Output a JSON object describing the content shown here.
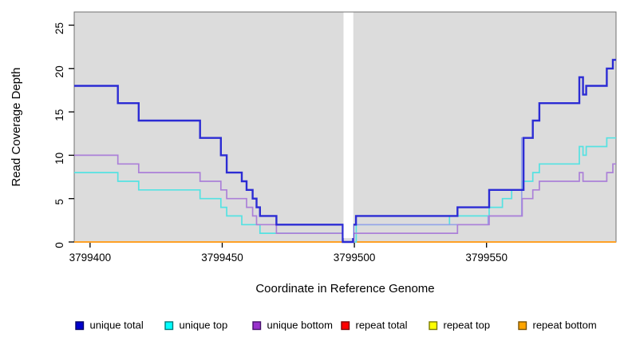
{
  "figure": {
    "background": "#ffffff",
    "panel_background": "#dcdcdc",
    "panel_border_color": "#707070",
    "axis_color": "#000000"
  },
  "chart_data": {
    "type": "line",
    "step": true,
    "title": "",
    "xlabel": "Coordinate in Reference Genome",
    "ylabel": "Read Coverage Depth",
    "xlim": [
      3799394,
      3799599
    ],
    "ylim": [
      0,
      26.5
    ],
    "x_ticks": [
      3799400,
      3799450,
      3799500,
      3799550
    ],
    "y_ticks": [
      0,
      5,
      10,
      15,
      20,
      25
    ],
    "grid": false,
    "legend_position": "bottom",
    "gap_mask": {
      "from": 3799495.9,
      "to": 3799499.6,
      "covers_values_above": 0.45,
      "color": "#ffffff"
    },
    "series": [
      {
        "name": "repeat total",
        "color": "#ff0000",
        "width": 1.6,
        "steps": [
          [
            3799394,
            0
          ]
        ],
        "end": 3799599
      },
      {
        "name": "repeat top",
        "color": "#ffff00",
        "width": 1.6,
        "steps": [
          [
            3799394,
            0
          ]
        ],
        "end": 3799599
      },
      {
        "name": "repeat bottom",
        "color": "#ffa126",
        "width": 2.1,
        "steps": [
          [
            3799394,
            0
          ]
        ],
        "end": 3799599
      },
      {
        "name": "unique top",
        "color": "#55e2e2",
        "width": 1.7,
        "steps": [
          [
            3799394,
            8
          ],
          [
            3799410.5,
            7
          ],
          [
            3799418.4,
            6
          ],
          [
            3799441.6,
            5
          ],
          [
            3799449.5,
            4
          ],
          [
            3799451.7,
            3
          ],
          [
            3799457.4,
            2
          ],
          [
            3799464.3,
            1
          ],
          [
            3799495.6,
            0
          ],
          [
            3799500.7,
            2
          ],
          [
            3799536,
            3
          ],
          [
            3799551,
            4
          ],
          [
            3799556,
            5
          ],
          [
            3799559.5,
            6
          ],
          [
            3799563.5,
            7
          ],
          [
            3799567.5,
            8
          ],
          [
            3799570,
            9
          ],
          [
            3799585.1,
            11
          ],
          [
            3799586.5,
            10
          ],
          [
            3799587.7,
            11
          ],
          [
            3799595.5,
            12
          ]
        ],
        "end": 3799599
      },
      {
        "name": "unlabeled light blue trace",
        "color": "#96a3e8",
        "width": 1.7,
        "steps": [
          [
            3799499.5,
            2
          ],
          [
            3799550.6,
            3
          ],
          [
            3799563.3,
            12
          ]
        ],
        "end": 3799565
      },
      {
        "name": "unique bottom",
        "color": "#ab80d8",
        "width": 1.7,
        "steps": [
          [
            3799394,
            10
          ],
          [
            3799410.5,
            9
          ],
          [
            3799418.4,
            8
          ],
          [
            3799441.6,
            7
          ],
          [
            3799449.5,
            6
          ],
          [
            3799451.7,
            5
          ],
          [
            3799459.2,
            4
          ],
          [
            3799461.5,
            3
          ],
          [
            3799463,
            2
          ],
          [
            3799470.5,
            1
          ],
          [
            3799495.6,
            0
          ],
          [
            3799499.8,
            1
          ],
          [
            3799539,
            2
          ],
          [
            3799551,
            3
          ],
          [
            3799563.5,
            5
          ],
          [
            3799567.5,
            6
          ],
          [
            3799570,
            7
          ],
          [
            3799585.1,
            8
          ],
          [
            3799586.5,
            7
          ],
          [
            3799587.7,
            7
          ],
          [
            3799595.5,
            8
          ],
          [
            3799597.8,
            9
          ]
        ],
        "end": 3799599
      },
      {
        "name": "unique total",
        "color": "#2c2cd4",
        "width": 2.4,
        "steps": [
          [
            3799394,
            18
          ],
          [
            3799410.5,
            16
          ],
          [
            3799418.4,
            14
          ],
          [
            3799441.6,
            12
          ],
          [
            3799449.5,
            10
          ],
          [
            3799451.7,
            8
          ],
          [
            3799457.4,
            7
          ],
          [
            3799459.2,
            6
          ],
          [
            3799461.5,
            5
          ],
          [
            3799463,
            4
          ],
          [
            3799464.3,
            3
          ],
          [
            3799470.5,
            2
          ],
          [
            3799495.6,
            0
          ],
          [
            3799499.5,
            2
          ],
          [
            3799500.6,
            3
          ],
          [
            3799539,
            4
          ],
          [
            3799551,
            6
          ],
          [
            3799564,
            12
          ],
          [
            3799567.5,
            14
          ],
          [
            3799570,
            16
          ],
          [
            3799585.1,
            19
          ],
          [
            3799586.5,
            17
          ],
          [
            3799587.7,
            18
          ],
          [
            3799595.5,
            20
          ],
          [
            3799597.8,
            21
          ]
        ],
        "end": 3799599
      }
    ],
    "legend": [
      {
        "label": "unique total",
        "color": "#0000cd",
        "border": "#000068"
      },
      {
        "label": "unique top",
        "color": "#00ffff",
        "border": "#007a7a"
      },
      {
        "label": "unique bottom",
        "color": "#9932cc",
        "border": "#46106b"
      },
      {
        "label": "repeat total",
        "color": "#ff0000",
        "border": "#7a0000"
      },
      {
        "label": "repeat top",
        "color": "#ffff00",
        "border": "#7a7a00"
      },
      {
        "label": "repeat bottom",
        "color": "#ffa500",
        "border": "#7a5200"
      }
    ]
  }
}
